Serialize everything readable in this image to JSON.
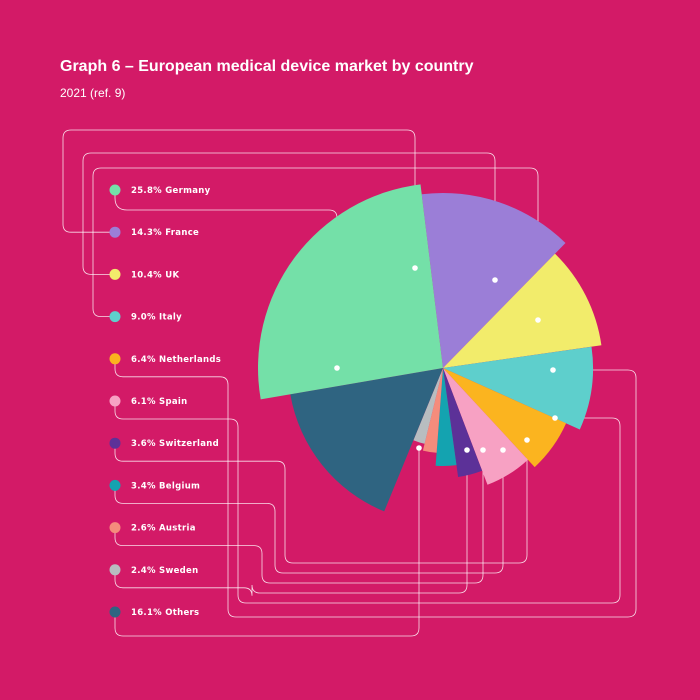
{
  "header": {
    "title": "Graph 6 – European medical device market by country",
    "subtitle": "2021 (ref. 9)"
  },
  "chart_data": {
    "type": "pie",
    "title": "Graph 6 – European medical device market by country",
    "subtitle": "2021 (ref. 9)",
    "unit": "%",
    "legend_position": "left",
    "background": "#d31a67",
    "slices": [
      {
        "label": "Germany",
        "value": 25.8,
        "color": "#74e0a8"
      },
      {
        "label": "France",
        "value": 14.3,
        "color": "#9b7ed7"
      },
      {
        "label": "UK",
        "value": 10.4,
        "color": "#f2ec6b"
      },
      {
        "label": "Italy",
        "value": 9.0,
        "color": "#5ecfcc"
      },
      {
        "label": "Netherlands",
        "value": 6.4,
        "color": "#fbb41f"
      },
      {
        "label": "Spain",
        "value": 6.1,
        "color": "#f7a1c3"
      },
      {
        "label": "Switzerland",
        "value": 3.6,
        "color": "#5c3198"
      },
      {
        "label": "Belgium",
        "value": 3.4,
        "color": "#14a3b0"
      },
      {
        "label": "Austria",
        "value": 2.6,
        "color": "#f58c7c"
      },
      {
        "label": "Sweden",
        "value": 2.4,
        "color": "#b8bdc0"
      },
      {
        "label": "Others",
        "value": 16.1,
        "color": "#2f6481"
      }
    ],
    "legend_labels": [
      "25.8% Germany",
      "14.3% France",
      "10.4% UK",
      "9.0% Italy",
      "6.4% Netherlands",
      "6.1% Spain",
      "3.6% Switzerland",
      "3.4% Belgium",
      "2.6% Austria",
      "2.4% Sweden",
      "16.1% Others"
    ]
  }
}
